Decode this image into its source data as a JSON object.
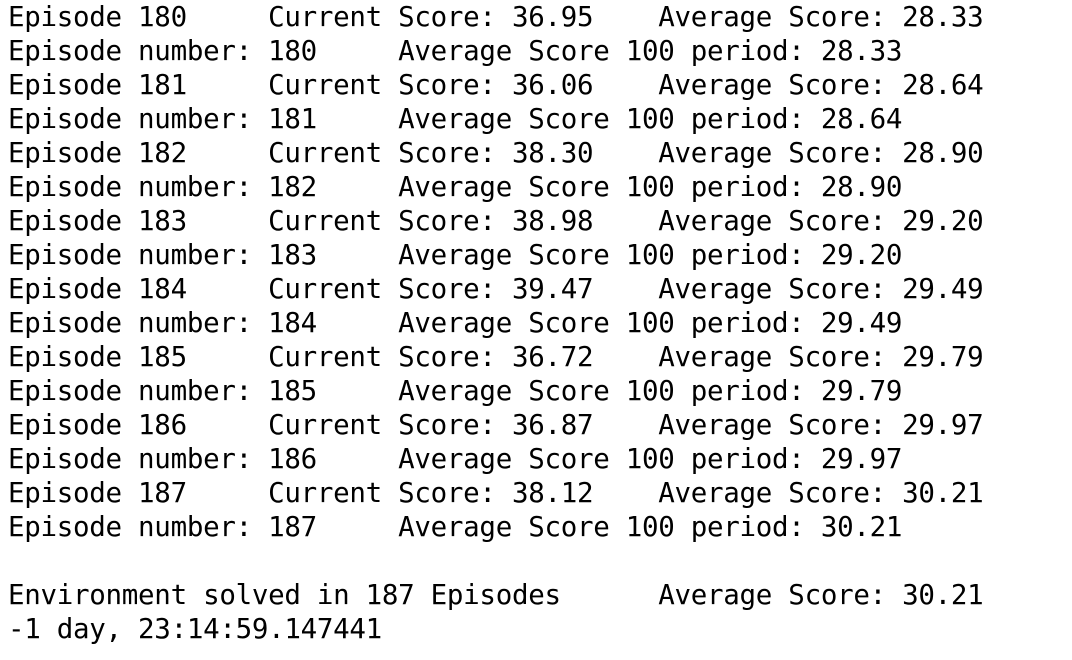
{
  "output": {
    "lines": [
      "Episode 180     Current Score: 36.95    Average Score: 28.33",
      "Episode number: 180     Average Score 100 period: 28.33",
      "Episode 181     Current Score: 36.06    Average Score: 28.64",
      "Episode number: 181     Average Score 100 period: 28.64",
      "Episode 182     Current Score: 38.30    Average Score: 28.90",
      "Episode number: 182     Average Score 100 period: 28.90",
      "Episode 183     Current Score: 38.98    Average Score: 29.20",
      "Episode number: 183     Average Score 100 period: 29.20",
      "Episode 184     Current Score: 39.47    Average Score: 29.49",
      "Episode number: 184     Average Score 100 period: 29.49",
      "Episode 185     Current Score: 36.72    Average Score: 29.79",
      "Episode number: 185     Average Score 100 period: 29.79",
      "Episode 186     Current Score: 36.87    Average Score: 29.97",
      "Episode number: 186     Average Score 100 period: 29.97",
      "Episode 187     Current Score: 38.12    Average Score: 30.21",
      "Episode number: 187     Average Score 100 period: 30.21"
    ],
    "solved_line": "Environment solved in 187 Episodes      Average Score: 30.21",
    "elapsed_line": "-1 day, 23:14:59.147441"
  },
  "colors": {
    "background": "#ffffff",
    "text": "#000000"
  }
}
